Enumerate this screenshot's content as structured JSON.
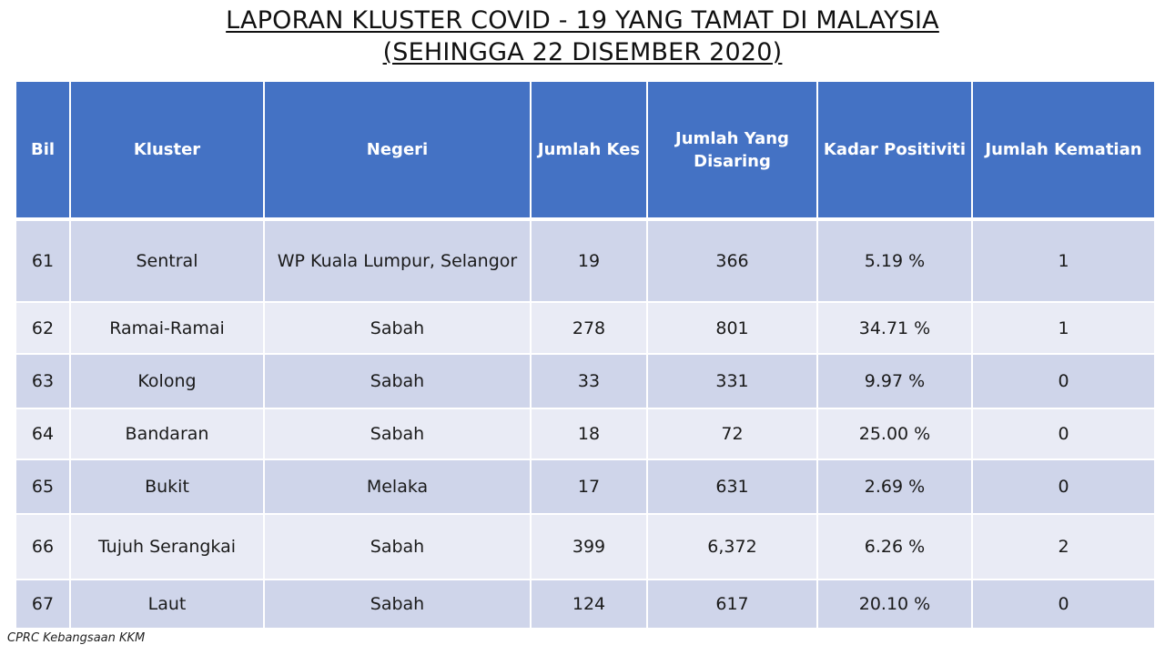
{
  "title": {
    "line1": "LAPORAN KLUSTER COVID - 19 YANG TAMAT DI MALAYSIA",
    "line2": "(SEHINGGA 22 DISEMBER 2020)"
  },
  "table": {
    "headers": {
      "bil": "Bil",
      "kluster": "Kluster",
      "negeri": "Negeri",
      "jumlah_kes": "Jumlah Kes",
      "jumlah_disaring": "Jumlah Yang Disaring",
      "kadar_positiviti": "Kadar Positiviti",
      "jumlah_kematian": "Jumlah Kematian"
    },
    "rows": [
      {
        "bil": "61",
        "kluster": "Sentral",
        "negeri": "WP Kuala Lumpur, Selangor",
        "jumlah_kes": "19",
        "jumlah_disaring": "366",
        "kadar_positiviti": "5.19 %",
        "jumlah_kematian": "1"
      },
      {
        "bil": "62",
        "kluster": "Ramai-Ramai",
        "negeri": "Sabah",
        "jumlah_kes": "278",
        "jumlah_disaring": "801",
        "kadar_positiviti": "34.71 %",
        "jumlah_kematian": "1"
      },
      {
        "bil": "63",
        "kluster": "Kolong",
        "negeri": "Sabah",
        "jumlah_kes": "33",
        "jumlah_disaring": "331",
        "kadar_positiviti": "9.97 %",
        "jumlah_kematian": "0"
      },
      {
        "bil": "64",
        "kluster": "Bandaran",
        "negeri": "Sabah",
        "jumlah_kes": "18",
        "jumlah_disaring": "72",
        "kadar_positiviti": "25.00 %",
        "jumlah_kematian": "0"
      },
      {
        "bil": "65",
        "kluster": "Bukit",
        "negeri": "Melaka",
        "jumlah_kes": "17",
        "jumlah_disaring": "631",
        "kadar_positiviti": "2.69 %",
        "jumlah_kematian": "0"
      },
      {
        "bil": "66",
        "kluster": "Tujuh Serangkai",
        "negeri": "Sabah",
        "jumlah_kes": "399",
        "jumlah_disaring": "6,372",
        "kadar_positiviti": "6.26 %",
        "jumlah_kematian": "2"
      },
      {
        "bil": "67",
        "kluster": "Laut",
        "negeri": "Sabah",
        "jumlah_kes": "124",
        "jumlah_disaring": "617",
        "kadar_positiviti": "20.10 %",
        "jumlah_kematian": "0"
      }
    ]
  },
  "footer": {
    "source": "CPRC Kebangsaan KKM"
  },
  "colors": {
    "header_background": "#4472c4",
    "row_dark": "#cfd5ea",
    "row_light": "#e9ebf5"
  }
}
